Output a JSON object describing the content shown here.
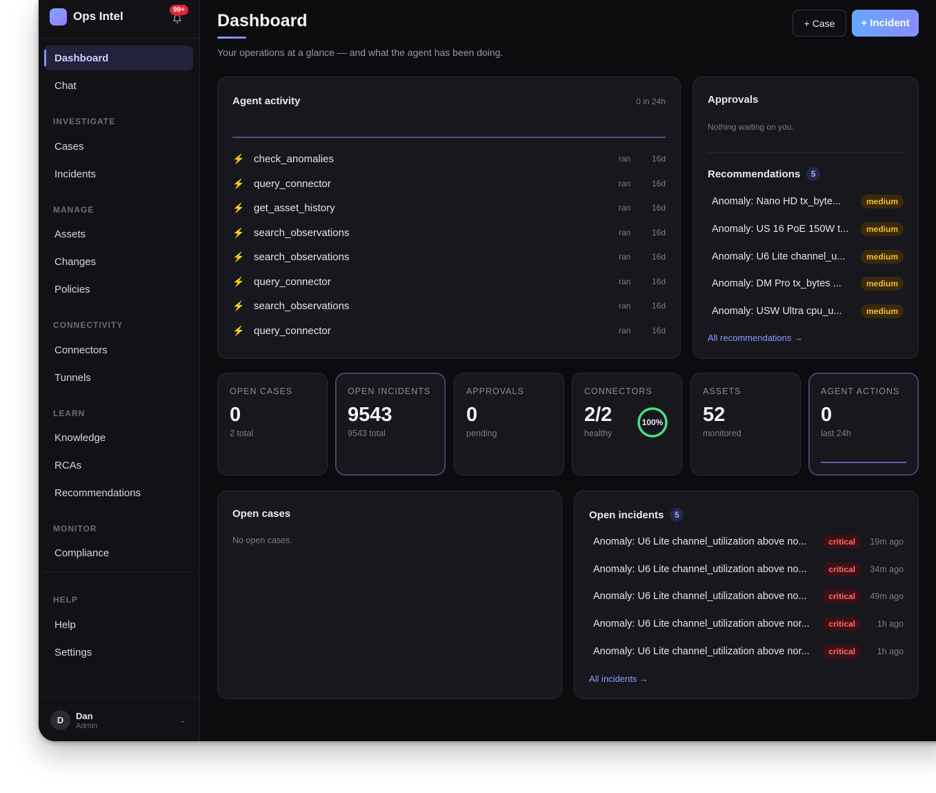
{
  "app": {
    "name": "Ops Intel",
    "notification_badge": "99+"
  },
  "sidebar": {
    "top_items": [
      {
        "label": "Dashboard",
        "active": true
      },
      {
        "label": "Chat"
      }
    ],
    "sections": [
      {
        "title": "INVESTIGATE",
        "items": [
          "Cases",
          "Incidents"
        ]
      },
      {
        "title": "MANAGE",
        "items": [
          "Assets",
          "Changes",
          "Policies"
        ]
      },
      {
        "title": "CONNECTIVITY",
        "items": [
          "Connectors",
          "Tunnels"
        ]
      },
      {
        "title": "LEARN",
        "items": [
          "Knowledge",
          "RCAs",
          "Recommendations"
        ]
      },
      {
        "title": "MONITOR",
        "items": [
          "Compliance"
        ]
      },
      {
        "title": "HELP",
        "items": [
          "Help",
          "Settings"
        ]
      }
    ],
    "user": {
      "initial": "D",
      "name": "Dan",
      "role": "Admin"
    }
  },
  "header": {
    "title": "Dashboard",
    "subtitle": "Your operations at a glance — and what the agent has been doing.",
    "case_button": "+ Case",
    "incident_button": "+ Incident"
  },
  "agent_activity": {
    "title": "Agent activity",
    "count_label": "0 in 24h",
    "rows": [
      {
        "name": "check_anomalies",
        "status": "ran",
        "age": "16d"
      },
      {
        "name": "query_connector",
        "status": "ran",
        "age": "16d"
      },
      {
        "name": "get_asset_history",
        "status": "ran",
        "age": "16d"
      },
      {
        "name": "search_observations",
        "status": "ran",
        "age": "16d"
      },
      {
        "name": "search_observations",
        "status": "ran",
        "age": "16d"
      },
      {
        "name": "query_connector",
        "status": "ran",
        "age": "16d"
      },
      {
        "name": "search_observations",
        "status": "ran",
        "age": "16d"
      },
      {
        "name": "query_connector",
        "status": "ran",
        "age": "16d"
      }
    ]
  },
  "approvals": {
    "title": "Approvals",
    "empty_text": "Nothing waiting on you.",
    "recommendations_title": "Recommendations",
    "recommendations_count": "5",
    "recommendations": [
      {
        "text": "Anomaly: Nano HD tx_byte...",
        "severity": "medium"
      },
      {
        "text": "Anomaly: US 16 PoE 150W t...",
        "severity": "medium"
      },
      {
        "text": "Anomaly: U6 Lite channel_u...",
        "severity": "medium"
      },
      {
        "text": "Anomaly: DM Pro tx_bytes ...",
        "severity": "medium"
      },
      {
        "text": "Anomaly: USW Ultra cpu_u...",
        "severity": "medium"
      }
    ],
    "all_link": "All recommendations →"
  },
  "stats": [
    {
      "label": "OPEN CASES",
      "value": "0",
      "sub": "2 total",
      "highlight": false
    },
    {
      "label": "OPEN INCIDENTS",
      "value": "9543",
      "sub": "9543 total",
      "highlight": true
    },
    {
      "label": "APPROVALS",
      "value": "0",
      "sub": "pending",
      "highlight": false
    },
    {
      "label": "CONNECTORS",
      "value": "2/2",
      "sub": "healthy",
      "highlight": false,
      "ring_percent": 100,
      "ring_label": "100%"
    },
    {
      "label": "ASSETS",
      "value": "52",
      "sub": "monitored",
      "highlight": false
    },
    {
      "label": "AGENT ACTIONS",
      "value": "0",
      "sub": "last 24h",
      "highlight": true
    }
  ],
  "open_cases": {
    "title": "Open cases",
    "empty_text": "No open cases."
  },
  "open_incidents": {
    "title": "Open incidents",
    "count": "5",
    "rows": [
      {
        "text": "Anomaly: U6 Lite channel_utilization above no...",
        "severity": "critical",
        "age": "19m ago"
      },
      {
        "text": "Anomaly: U6 Lite channel_utilization above no...",
        "severity": "critical",
        "age": "34m ago"
      },
      {
        "text": "Anomaly: U6 Lite channel_utilization above no...",
        "severity": "critical",
        "age": "49m ago"
      },
      {
        "text": "Anomaly: U6 Lite channel_utilization above nor...",
        "severity": "critical",
        "age": "1h ago"
      },
      {
        "text": "Anomaly: U6 Lite channel_utilization above nor...",
        "severity": "critical",
        "age": "1h ago"
      }
    ],
    "all_link": "All incidents →"
  },
  "colors": {
    "accent": "#8a8cff",
    "medium": "#f5b93a",
    "critical": "#ff6b6b",
    "healthy_ring": "#4ade80"
  }
}
